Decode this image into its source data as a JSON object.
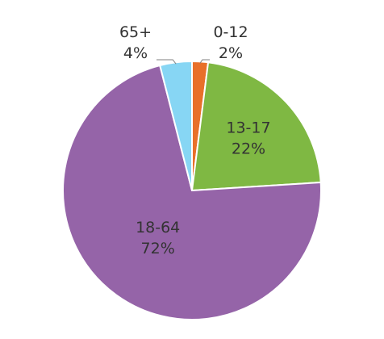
{
  "chart_data": {
    "type": "pie",
    "title": "",
    "slices": [
      {
        "label": "0-12",
        "percent_label": "2%",
        "value": 2,
        "color": "#e8702a",
        "label_outside": true
      },
      {
        "label": "13-17",
        "percent_label": "22%",
        "value": 22,
        "color": "#7fb843",
        "label_outside": false
      },
      {
        "label": "18-64",
        "percent_label": "72%",
        "value": 72,
        "color": "#9564a8",
        "label_outside": false
      },
      {
        "label": "65+",
        "percent_label": "4%",
        "value": 4,
        "color": "#87d6f4",
        "label_outside": true
      }
    ],
    "start_angle_degrees": 0,
    "direction": "clockwise",
    "legend": "none"
  }
}
